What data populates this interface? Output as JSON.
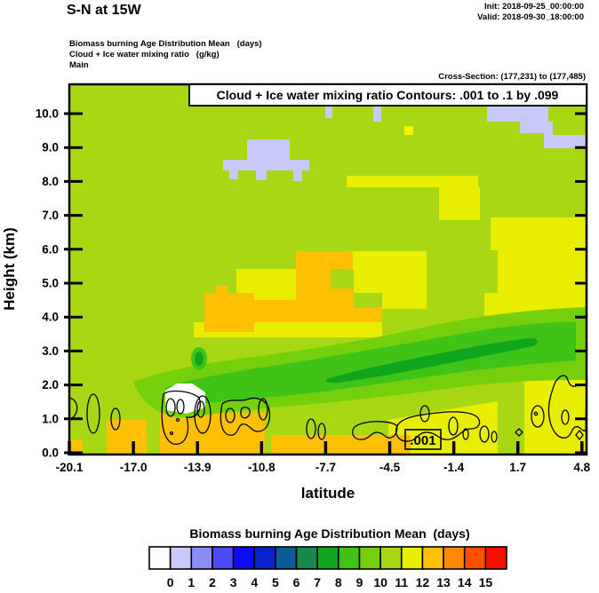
{
  "header": {
    "title": "S-N at 15W",
    "init": "Init: 2018-09-25_00:00:00",
    "valid": "Valid: 2018-09-30_18:00:00"
  },
  "fields": {
    "line1": "Biomass burning Age Distribution Mean   (days)",
    "line2": "Cloud + Ice water mixing ratio   (g/kg)",
    "line3": "Main"
  },
  "cross_section": "Cross-Section: (177,231) to (177,485)",
  "contour_box_title": "Cloud + Ice water mixing ratio Contours: .001 to .1 by .099",
  "contour_inline_label": ".001",
  "axes": {
    "y": {
      "title": "Height (km)",
      "ticks": [
        "0.0",
        "1.0",
        "2.0",
        "3.0",
        "4.0",
        "5.0",
        "6.0",
        "7.0",
        "8.0",
        "9.0",
        "10.0"
      ]
    },
    "x": {
      "title": "latitude",
      "ticks": [
        "-20.1",
        "-17.0",
        "-13.9",
        "-10.8",
        "-7.7",
        "-4.5",
        "-1.4",
        "1.7",
        "4.8"
      ]
    }
  },
  "legend": {
    "title": "Biomass burning Age Distribution Mean  (days)",
    "labels": [
      "0",
      "1",
      "2",
      "3",
      "4",
      "5",
      "6",
      "7",
      "8",
      "9",
      "10",
      "11",
      "12",
      "13",
      "14",
      "15"
    ],
    "colors": [
      "#ffffff",
      "#c9c9fb",
      "#8d8df9",
      "#4b4bf7",
      "#0b0bf5",
      "#0a23cd",
      "#0c5a96",
      "#17894b",
      "#10a51c",
      "#3fc316",
      "#76cf0d",
      "#a8d713",
      "#e9ee00",
      "#ffc003",
      "#ff8903",
      "#ff4f02",
      "#fb0e00"
    ]
  },
  "plot_colors": {
    "background_10_11_days": "#a8d713",
    "pale_yellow_11_12_days": "#e9ee00",
    "bright_yellow_12_13_days": "#f2f400",
    "gold_13_14_days": "#ffc003",
    "green_9_10_days": "#76cf0d",
    "green_8_9_days": "#3fc316",
    "green_7_8_days": "#10a51c",
    "lavender_0_1_days": "#c9c9fb",
    "white_below_0": "#ffffff",
    "contour_line": "#000000"
  },
  "chart_data": {
    "type": "heatmap",
    "subtype": "filled-contour vertical cross-section",
    "title": "S-N at 15W",
    "fill_field": {
      "name": "Biomass burning Age Distribution Mean",
      "units": "days",
      "bin_boundaries": [
        0,
        1,
        2,
        3,
        4,
        5,
        6,
        7,
        8,
        9,
        10,
        11,
        12,
        13,
        14,
        15
      ],
      "bin_colors": [
        "#ffffff",
        "#c9c9fb",
        "#8d8df9",
        "#4b4bf7",
        "#0b0bf5",
        "#0a23cd",
        "#0c5a96",
        "#17894b",
        "#10a51c",
        "#3fc316",
        "#76cf0d",
        "#a8d713",
        "#e9ee00",
        "#ffc003",
        "#ff8903",
        "#ff4f02",
        "#fb0e00"
      ],
      "legend_position": "bottom"
    },
    "line_field": {
      "name": "Cloud + Ice water mixing ratio",
      "units": "g/kg",
      "contour_levels": [
        0.001,
        0.1
      ],
      "contour_spec": ".001 to .1 by .099",
      "labeled_value": ".001"
    },
    "xlabel": "latitude",
    "ylabel": "Height (km)",
    "xlim": [
      -20.1,
      4.8
    ],
    "ylim": [
      0,
      10.9
    ],
    "x_ticks": [
      -20.1,
      -17.0,
      -13.9,
      -10.8,
      -7.7,
      -4.5,
      -1.4,
      1.7,
      4.8
    ],
    "y_ticks": [
      0,
      1,
      2,
      3,
      4,
      5,
      6,
      7,
      8,
      9,
      10
    ],
    "grid": false,
    "features": [
      {
        "region": "most of domain",
        "value_days": "10-11 (yellow-green background)"
      },
      {
        "region": "lat -13 to 0, height 1.5-3.5 km, sloping band",
        "value_days": "7-9 (dark green aged-plume core)"
      },
      {
        "region": "lat -5 to 4.8, height 0-4 km right block",
        "value_days": "11-12 (pale yellow)"
      },
      {
        "region": "lat -14 to -8, height 3-4.5 km patches and bottom strip below 1 km",
        "value_days": "12-14 (gold/orange)"
      },
      {
        "region": "lat -12.5, height ~1.2 km small spot",
        "value_days": "below 0 (white)"
      },
      {
        "region": "top right and lat -11, height 8-9 km patches",
        "value_days": "0-1 (lavender)"
      },
      {
        "region": "cloud + ice 0.001 g/kg contour loops",
        "location": "scattered along 0.5-2 km height across domain"
      }
    ]
  }
}
